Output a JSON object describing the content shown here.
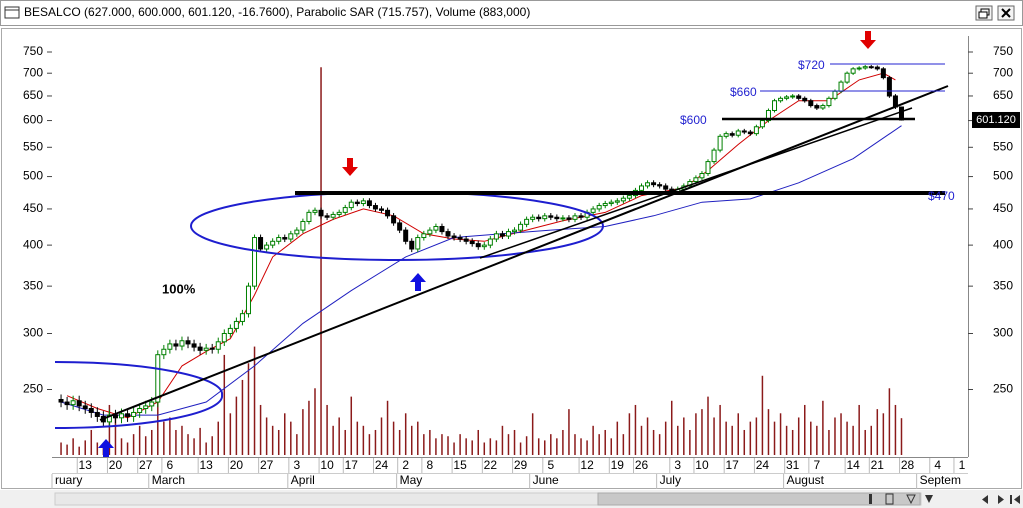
{
  "chart_data": {
    "type": "candlestick",
    "title": "BESALCO (627.000, 600.000, 601.120, -16.7600), Parabolic SAR (715.757), Volume (883,000)",
    "log_scale": true,
    "xlim": [
      -1,
      150
    ],
    "ylim": [
      202,
      785
    ],
    "yticks": [
      250,
      300,
      350,
      400,
      450,
      500,
      550,
      600,
      650,
      700,
      750
    ],
    "xticks": [
      {
        "value": 4,
        "label": "13"
      },
      {
        "value": 9,
        "label": "20"
      },
      {
        "value": 14,
        "label": "27"
      },
      {
        "value": 18,
        "label": "6"
      },
      {
        "value": 24,
        "label": "13"
      },
      {
        "value": 29,
        "label": "20"
      },
      {
        "value": 34,
        "label": "27"
      },
      {
        "value": 39,
        "label": "3"
      },
      {
        "value": 44,
        "label": "10"
      },
      {
        "value": 48,
        "label": "17"
      },
      {
        "value": 53,
        "label": "24"
      },
      {
        "value": 57,
        "label": "2"
      },
      {
        "value": 61,
        "label": "8"
      },
      {
        "value": 66,
        "label": "15"
      },
      {
        "value": 71,
        "label": "22"
      },
      {
        "value": 76,
        "label": "29"
      },
      {
        "value": 81,
        "label": "5"
      },
      {
        "value": 87,
        "label": "12"
      },
      {
        "value": 92,
        "label": "19"
      },
      {
        "value": 96,
        "label": "26"
      },
      {
        "value": 102,
        "label": "3"
      },
      {
        "value": 106,
        "label": "10"
      },
      {
        "value": 111,
        "label": "17"
      },
      {
        "value": 116,
        "label": "24"
      },
      {
        "value": 121,
        "label": "31"
      },
      {
        "value": 125,
        "label": "7"
      },
      {
        "value": 131,
        "label": "14"
      },
      {
        "value": 135,
        "label": "21"
      },
      {
        "value": 140,
        "label": "28"
      },
      {
        "value": 145,
        "label": "4"
      },
      {
        "value": 149,
        "label": "1"
      }
    ],
    "month_labels": [
      {
        "value": -1,
        "label": "ruary"
      },
      {
        "value": 15,
        "label": "March"
      },
      {
        "value": 38,
        "label": "April"
      },
      {
        "value": 56,
        "label": "May"
      },
      {
        "value": 78,
        "label": "June"
      },
      {
        "value": 99,
        "label": "July"
      },
      {
        "value": 120,
        "label": "August"
      },
      {
        "value": 142,
        "label": "Septem"
      }
    ],
    "open": [
      242,
      240,
      238,
      241,
      237,
      235,
      232,
      229,
      225,
      230,
      228,
      231,
      229,
      232,
      235,
      237,
      240,
      280,
      285,
      290,
      288,
      293,
      290,
      287,
      284,
      286,
      285,
      292,
      300,
      305,
      312,
      320,
      350,
      410,
      395,
      400,
      405,
      410,
      408,
      415,
      420,
      432,
      445,
      448,
      440,
      438,
      442,
      445,
      452,
      460,
      458,
      462,
      455,
      450,
      448,
      440,
      430,
      420,
      405,
      395,
      410,
      415,
      420,
      425,
      418,
      412,
      410,
      408,
      405,
      402,
      398,
      400,
      408,
      415,
      412,
      418,
      420,
      428,
      435,
      438,
      436,
      440,
      438,
      436,
      437,
      435,
      440,
      438,
      445,
      450,
      455,
      458,
      460,
      462,
      466,
      470,
      478,
      485,
      490,
      487,
      485,
      480,
      475,
      480,
      485,
      492,
      498,
      505,
      525,
      545,
      570,
      575,
      572,
      580,
      578,
      575,
      588,
      600,
      620,
      640,
      645,
      648,
      650,
      645,
      640,
      630,
      625,
      630,
      645,
      660,
      680,
      700,
      710,
      712,
      715,
      714,
      710,
      690,
      650,
      627
    ],
    "high": [
      246,
      244,
      245,
      245,
      241,
      239,
      236,
      233,
      234,
      234,
      235,
      235,
      236,
      239,
      241,
      244,
      284,
      289,
      294,
      294,
      297,
      297,
      294,
      291,
      290,
      290,
      296,
      304,
      309,
      316,
      324,
      354,
      414,
      414,
      404,
      409,
      414,
      414,
      419,
      424,
      436,
      449,
      452,
      452,
      444,
      446,
      449,
      456,
      464,
      464,
      466,
      466,
      459,
      454,
      452,
      444,
      434,
      424,
      409,
      414,
      419,
      424,
      429,
      429,
      422,
      416,
      414,
      412,
      409,
      406,
      404,
      412,
      419,
      419,
      422,
      424,
      432,
      439,
      442,
      442,
      444,
      444,
      442,
      441,
      441,
      444,
      444,
      449,
      454,
      459,
      462,
      464,
      466,
      470,
      474,
      482,
      489,
      494,
      494,
      491,
      489,
      484,
      484,
      489,
      496,
      502,
      509,
      529,
      549,
      574,
      579,
      579,
      584,
      584,
      582,
      592,
      604,
      624,
      644,
      649,
      652,
      654,
      654,
      649,
      644,
      634,
      634,
      649,
      664,
      684,
      704,
      714,
      716,
      719,
      719,
      718,
      714,
      694,
      654,
      627
    ],
    "low": [
      236,
      234,
      234,
      233,
      231,
      228,
      225,
      221,
      221,
      224,
      224,
      225,
      225,
      228,
      231,
      233,
      236,
      276,
      281,
      284,
      284,
      286,
      283,
      280,
      280,
      281,
      281,
      288,
      296,
      301,
      308,
      316,
      346,
      391,
      391,
      396,
      401,
      404,
      404,
      411,
      416,
      428,
      441,
      436,
      434,
      434,
      438,
      441,
      448,
      454,
      454,
      451,
      446,
      444,
      436,
      426,
      416,
      401,
      391,
      391,
      406,
      411,
      416,
      414,
      408,
      406,
      404,
      401,
      398,
      394,
      394,
      396,
      404,
      408,
      408,
      414,
      416,
      424,
      431,
      432,
      432,
      434,
      432,
      432,
      431,
      431,
      434,
      434,
      441,
      446,
      451,
      454,
      456,
      458,
      462,
      466,
      474,
      481,
      483,
      481,
      476,
      471,
      471,
      476,
      481,
      488,
      494,
      501,
      521,
      541,
      566,
      568,
      568,
      574,
      571,
      571,
      584,
      596,
      616,
      636,
      641,
      644,
      641,
      636,
      626,
      621,
      621,
      626,
      641,
      656,
      676,
      696,
      706,
      708,
      710,
      706,
      686,
      646,
      623,
      600
    ],
    "close": [
      240,
      238,
      241,
      237,
      235,
      232,
      229,
      225,
      230,
      228,
      231,
      229,
      232,
      235,
      237,
      240,
      280,
      285,
      290,
      288,
      293,
      290,
      287,
      284,
      286,
      285,
      292,
      300,
      305,
      312,
      320,
      350,
      410,
      395,
      400,
      405,
      410,
      408,
      415,
      420,
      432,
      445,
      448,
      440,
      438,
      442,
      445,
      452,
      460,
      458,
      462,
      455,
      450,
      448,
      440,
      430,
      420,
      405,
      395,
      410,
      415,
      420,
      425,
      418,
      412,
      410,
      408,
      405,
      402,
      398,
      400,
      408,
      415,
      412,
      418,
      420,
      428,
      435,
      438,
      436,
      440,
      438,
      436,
      437,
      435,
      440,
      438,
      445,
      450,
      455,
      458,
      460,
      462,
      466,
      470,
      478,
      485,
      490,
      487,
      485,
      480,
      475,
      480,
      485,
      492,
      498,
      505,
      525,
      545,
      570,
      575,
      572,
      580,
      578,
      575,
      588,
      600,
      620,
      640,
      645,
      648,
      650,
      645,
      640,
      630,
      625,
      630,
      645,
      660,
      680,
      700,
      710,
      712,
      715,
      714,
      710,
      690,
      650,
      627,
      601.12
    ],
    "volume": [
      300000,
      250000,
      400000,
      200000,
      350000,
      600000,
      300000,
      250000,
      1200000,
      900000,
      400000,
      300000,
      500000,
      700000,
      450000,
      600000,
      1500000,
      800000,
      900000,
      600000,
      700000,
      500000,
      400000,
      650000,
      300000,
      450000,
      800000,
      2400000,
      1000000,
      1400000,
      1800000,
      2200000,
      2600000,
      1200000,
      900000,
      700000,
      600000,
      1000000,
      800000,
      500000,
      1100000,
      1300000,
      1600000,
      9300000,
      1200000,
      700000,
      900000,
      600000,
      1400000,
      800000,
      700000,
      500000,
      600000,
      900000,
      1300000,
      800000,
      600000,
      1000000,
      700000,
      800000,
      500000,
      600000,
      400000,
      500000,
      450000,
      300000,
      500000,
      400000,
      350000,
      600000,
      300000,
      400000,
      350000,
      700000,
      500000,
      600000,
      300000,
      450000,
      1000000,
      400000,
      350000,
      500000,
      400000,
      600000,
      1100000,
      500000,
      400000,
      350000,
      700000,
      500000,
      600000,
      400000,
      800000,
      500000,
      1000000,
      1200000,
      700000,
      900000,
      600000,
      500000,
      800000,
      1300000,
      700000,
      900000,
      600000,
      1000000,
      1100000,
      1400000,
      900000,
      1200000,
      800000,
      700000,
      1000000,
      600000,
      800000,
      900000,
      1900000,
      1100000,
      800000,
      1000000,
      700000,
      600000,
      900000,
      1200000,
      800000,
      700000,
      1300000,
      600000,
      900000,
      1000000,
      800000,
      700000,
      1200000,
      600000,
      700000,
      1100000,
      1000000,
      1600000,
      1200000,
      883000
    ],
    "volume_lim": [
      0,
      10000000
    ],
    "up_color": "#008000",
    "down_color": "#000000",
    "volume_color": "#8b1a1a",
    "last_value_label": "601.120",
    "overlays": [
      {
        "color": "#d00000",
        "x": [
          1,
          6,
          11,
          16,
          20,
          24,
          28,
          32,
          35,
          40,
          45,
          50,
          55,
          60,
          65,
          70,
          76,
          83,
          90,
          96,
          103,
          107,
          112,
          117,
          122,
          127,
          132,
          136,
          138
        ],
        "values": [
          245,
          235,
          228,
          240,
          270,
          283,
          295,
          340,
          385,
          415,
          435,
          450,
          440,
          415,
          408,
          405,
          418,
          433,
          445,
          470,
          482,
          510,
          555,
          600,
          640,
          640,
          685,
          700,
          685
        ]
      },
      {
        "color": "#2020c0",
        "x": [
          0,
          7,
          16,
          24,
          32,
          40,
          48,
          57,
          65,
          73,
          81,
          90,
          98,
          106,
          114,
          122,
          131,
          139
        ],
        "values": [
          240,
          230,
          230,
          240,
          270,
          310,
          345,
          385,
          410,
          415,
          420,
          425,
          440,
          460,
          465,
          490,
          530,
          590
        ]
      }
    ],
    "annotations": [
      "$720",
      "$660",
      "$600",
      "$470",
      "100%"
    ]
  }
}
